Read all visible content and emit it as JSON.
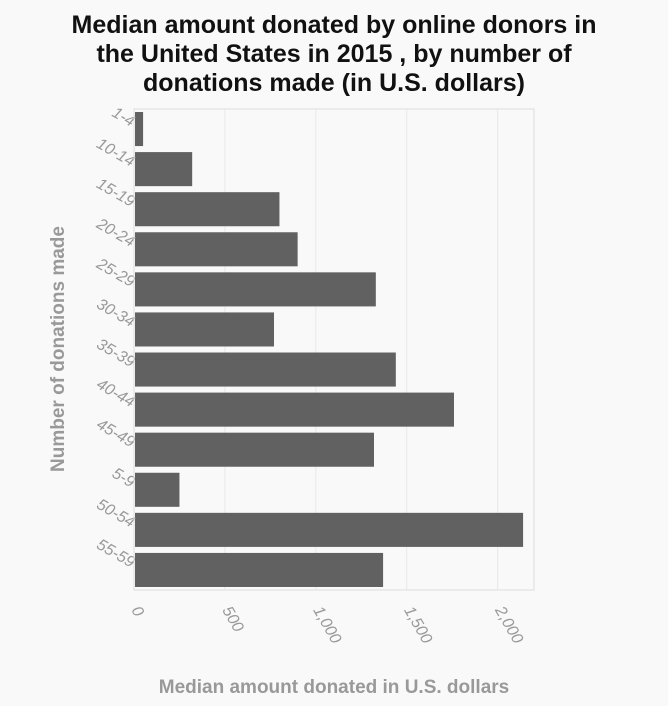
{
  "chart_data": {
    "type": "bar",
    "orientation": "horizontal",
    "title_lines": [
      "Median amount donated by online donors in",
      "the United States in 2015 , by number of",
      "donations made (in U.S. dollars)"
    ],
    "xlabel": "Median amount donated in U.S. dollars",
    "ylabel": "Number of donations made",
    "categories": [
      "1-4",
      "10-14",
      "15-19",
      "20-24",
      "25-29",
      "30-34",
      "35-39",
      "40-44",
      "45-49",
      "5-9",
      "50-54",
      "55-59"
    ],
    "values": [
      50,
      320,
      800,
      900,
      1330,
      770,
      1440,
      1760,
      1320,
      250,
      2140,
      1370
    ],
    "xlim": [
      0,
      2200
    ],
    "xticks": [
      0,
      500,
      1000,
      1500,
      2000
    ],
    "xtick_labels": [
      "0",
      "500",
      "1,000",
      "1,500",
      "2,000"
    ],
    "grid": true,
    "bar_color": "#616161",
    "grid_color": "#e8e8e8",
    "background_color": "#f9f9f9"
  }
}
